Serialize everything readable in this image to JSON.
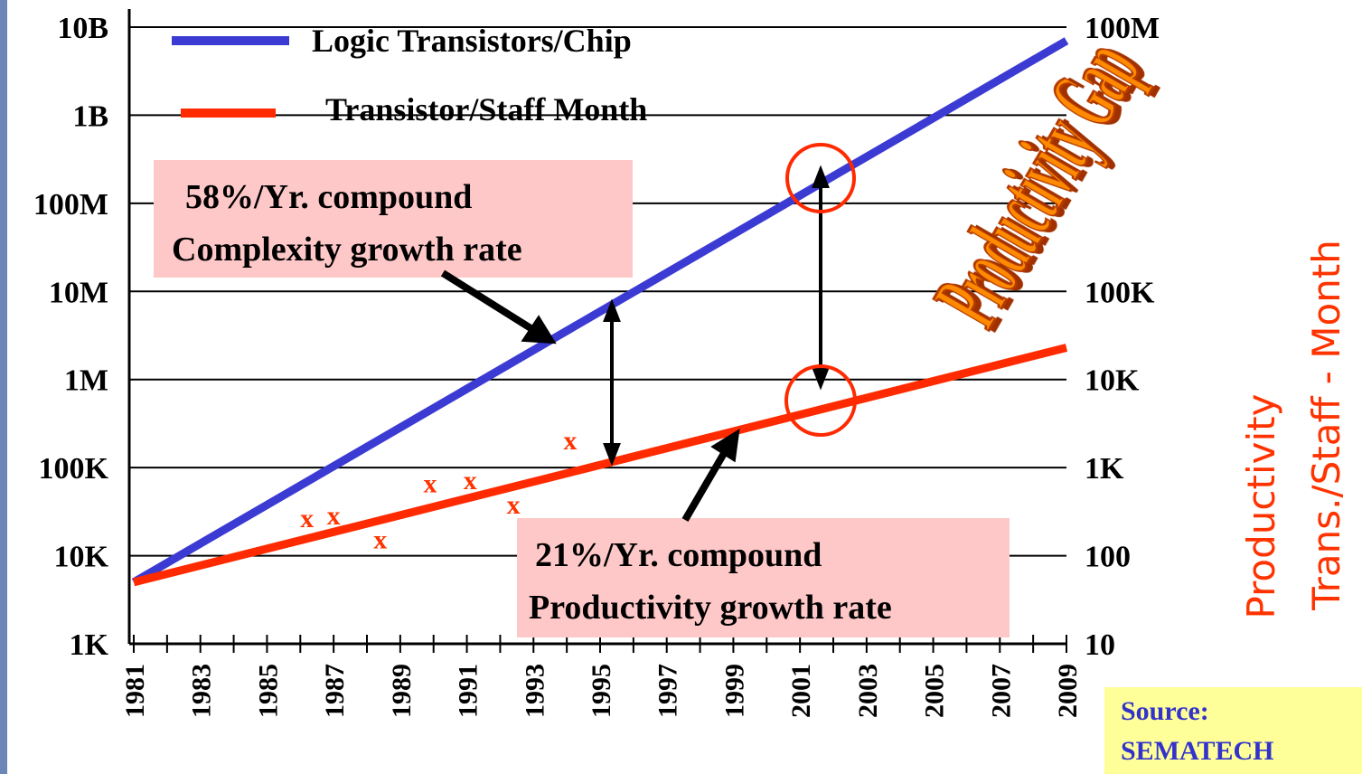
{
  "chart_data": {
    "type": "line",
    "log_y": true,
    "grid": true,
    "xlim": [
      1981,
      2009
    ],
    "xticks": [
      1981,
      1983,
      1985,
      1987,
      1989,
      1991,
      1993,
      1995,
      1997,
      1999,
      2001,
      2003,
      2005,
      2007,
      2009
    ],
    "xminor_ticks": [
      1982,
      1984,
      1986,
      1988,
      1990,
      1992,
      1994,
      1996,
      1998,
      2000,
      2002,
      2004,
      2006,
      2008
    ],
    "ylim": [
      1000,
      10000000000
    ],
    "yticks": [
      {
        "value": 1000,
        "label": "1K"
      },
      {
        "value": 10000,
        "label": "10K"
      },
      {
        "value": 100000,
        "label": "100K"
      },
      {
        "value": 1000000,
        "label": "1M"
      },
      {
        "value": 10000000,
        "label": "10M"
      },
      {
        "value": 100000000,
        "label": "100M"
      },
      {
        "value": 1000000000,
        "label": "1B"
      },
      {
        "value": 10000000000,
        "label": "10B"
      }
    ],
    "y2lim": [
      10,
      100000000
    ],
    "y2ticks": [
      10,
      100,
      {
        "value": 1000,
        "label": "1K"
      },
      {
        "value": 10000,
        "label": "10K"
      },
      {
        "value": 100000,
        "label": "100K"
      },
      {
        "value": 100000000,
        "label": "100M"
      }
    ],
    "y2label": [
      "Productivity",
      "Trans./Staff - Month"
    ],
    "series": [
      {
        "name": "Logic Transistors/Chip",
        "color": "#3b3bd4",
        "x": [
          1981,
          2009
        ],
        "values": [
          5000,
          7000000000
        ]
      },
      {
        "name": "Transistor/Staff Month",
        "color": "#ff2a00",
        "x": [
          1981,
          2009
        ],
        "values": [
          50,
          23000
        ],
        "axis": "y2"
      }
    ],
    "scatter": {
      "marker": "x",
      "color": "#ff3300",
      "axis": "y2",
      "x": [
        1986.2,
        1987.0,
        1988.4,
        1989.9,
        1991.1,
        1992.4,
        1994.1
      ],
      "values": [
        260,
        280,
        150,
        650,
        700,
        370,
        2000
      ]
    },
    "annotations": [
      {
        "lines": [
          "58%/Yr. compound",
          "Complexity growth rate"
        ]
      },
      {
        "lines": [
          "21%/Yr. compound",
          "Productivity growth rate"
        ]
      }
    ],
    "headline": "Productivity Gap",
    "source": [
      "Source:",
      "SEMATECH"
    ]
  }
}
